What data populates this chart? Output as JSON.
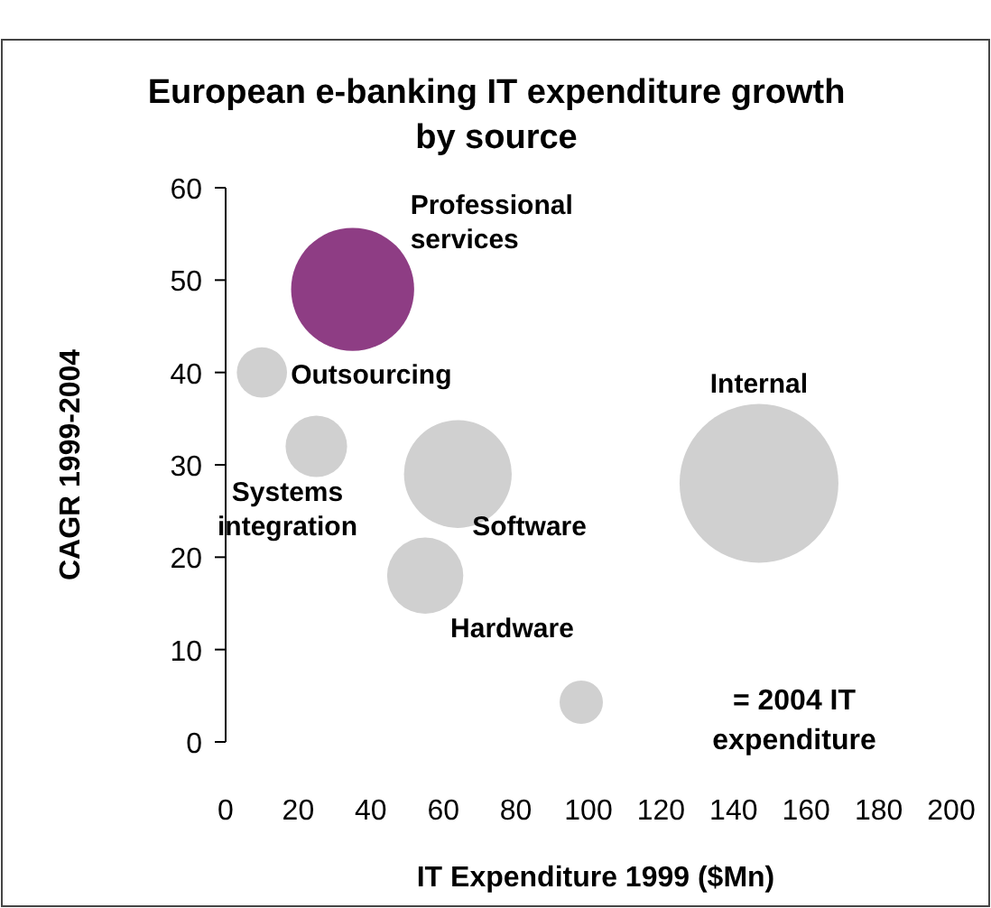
{
  "chart_data": {
    "type": "bubble",
    "title": "European e-banking IT expenditure growth by source",
    "xlabel": "IT Expenditure 1999 ($Mn)",
    "ylabel": "CAGR 1999-2004",
    "series": [
      {
        "name": "Professional services",
        "color": "#8e3d84",
        "x": [
          35
        ],
        "values": [
          49
        ],
        "sizes": [
          0.6
        ]
      },
      {
        "name": "Outsourcing",
        "color": "#d0d0d0",
        "x": [
          10
        ],
        "values": [
          40
        ],
        "sizes": [
          0.1
        ]
      },
      {
        "name": "Systems integration",
        "color": "#d0d0d0",
        "x": [
          25
        ],
        "values": [
          32
        ],
        "sizes": [
          0.15
        ]
      },
      {
        "name": "Software",
        "color": "#d0d0d0",
        "x": [
          64
        ],
        "values": [
          29
        ],
        "sizes": [
          0.46
        ]
      },
      {
        "name": "Hardware",
        "color": "#d0d0d0",
        "x": [
          55
        ],
        "values": [
          18
        ],
        "sizes": [
          0.23
        ]
      },
      {
        "name": "Internal",
        "color": "#d0d0d0",
        "x": [
          147
        ],
        "values": [
          28
        ],
        "sizes": [
          1
        ]
      }
    ],
    "xlim": [
      0,
      200
    ],
    "xticks": [
      0,
      20,
      40,
      60,
      80,
      100,
      120,
      140,
      160,
      180,
      200
    ],
    "ylim": [
      0,
      60
    ],
    "yticks": [
      0,
      10,
      20,
      30,
      40,
      50,
      60
    ],
    "annotations": [
      "= 2004 IT expenditure"
    ]
  }
}
